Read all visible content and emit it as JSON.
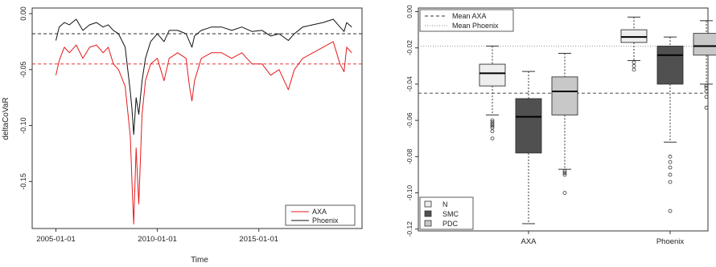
{
  "chart_data": [
    {
      "type": "line",
      "xlabel": "Time",
      "ylabel": "deltaCoVaR",
      "x_range": [
        "2003-11-01",
        "2020-02-01"
      ],
      "ylim": [
        -0.192,
        0.005
      ],
      "x_ticks": [
        "2005-01-01",
        "2010-01-01",
        "2015-01-01"
      ],
      "y_ticks": [
        "0.00",
        "-0.05",
        "-0.10",
        "-0.15"
      ],
      "y_tick_values": [
        0.0,
        -0.05,
        -0.1,
        -0.15
      ],
      "legend": {
        "position": "bottom-right",
        "entries": [
          "AXA",
          "Phoenix"
        ]
      },
      "series": [
        {
          "name": "AXA",
          "color": "#e41a1c",
          "points": [
            [
              "2005-01-01",
              -0.055
            ],
            [
              "2005-03-01",
              -0.042
            ],
            [
              "2005-06-01",
              -0.03
            ],
            [
              "2005-09-01",
              -0.035
            ],
            [
              "2006-01-01",
              -0.028
            ],
            [
              "2006-05-01",
              -0.04
            ],
            [
              "2006-09-01",
              -0.03
            ],
            [
              "2007-01-01",
              -0.028
            ],
            [
              "2007-05-01",
              -0.035
            ],
            [
              "2007-08-01",
              -0.03
            ],
            [
              "2007-11-01",
              -0.045
            ],
            [
              "2008-02-01",
              -0.05
            ],
            [
              "2008-06-01",
              -0.065
            ],
            [
              "2008-09-01",
              -0.11
            ],
            [
              "2008-10-01",
              -0.15
            ],
            [
              "2008-11-01",
              -0.188
            ],
            [
              "2008-12-15",
              -0.12
            ],
            [
              "2009-02-01",
              -0.17
            ],
            [
              "2009-04-01",
              -0.09
            ],
            [
              "2009-06-01",
              -0.06
            ],
            [
              "2009-09-01",
              -0.045
            ],
            [
              "2010-01-01",
              -0.04
            ],
            [
              "2010-05-01",
              -0.06
            ],
            [
              "2010-08-01",
              -0.04
            ],
            [
              "2011-01-01",
              -0.035
            ],
            [
              "2011-06-01",
              -0.04
            ],
            [
              "2011-08-01",
              -0.065
            ],
            [
              "2011-09-15",
              -0.078
            ],
            [
              "2011-11-01",
              -0.06
            ],
            [
              "2012-03-01",
              -0.04
            ],
            [
              "2012-09-01",
              -0.035
            ],
            [
              "2013-03-01",
              -0.035
            ],
            [
              "2013-09-01",
              -0.04
            ],
            [
              "2014-03-01",
              -0.035
            ],
            [
              "2014-09-01",
              -0.045
            ],
            [
              "2015-03-01",
              -0.045
            ],
            [
              "2015-08-01",
              -0.055
            ],
            [
              "2016-01-01",
              -0.05
            ],
            [
              "2016-06-15",
              -0.068
            ],
            [
              "2016-10-01",
              -0.05
            ],
            [
              "2017-03-01",
              -0.04
            ],
            [
              "2017-09-01",
              -0.035
            ],
            [
              "2018-03-01",
              -0.03
            ],
            [
              "2018-09-01",
              -0.025
            ],
            [
              "2019-01-01",
              -0.045
            ],
            [
              "2019-03-15",
              -0.052
            ],
            [
              "2019-05-01",
              -0.03
            ],
            [
              "2019-08-01",
              -0.035
            ]
          ]
        },
        {
          "name": "Phoenix",
          "color": "#111111",
          "points": [
            [
              "2005-01-01",
              -0.024
            ],
            [
              "2005-03-01",
              -0.012
            ],
            [
              "2005-06-01",
              -0.008
            ],
            [
              "2005-09-01",
              -0.01
            ],
            [
              "2006-01-01",
              -0.005
            ],
            [
              "2006-05-01",
              -0.015
            ],
            [
              "2006-09-01",
              -0.01
            ],
            [
              "2007-01-01",
              -0.008
            ],
            [
              "2007-05-01",
              -0.012
            ],
            [
              "2007-08-01",
              -0.01
            ],
            [
              "2007-11-01",
              -0.015
            ],
            [
              "2008-02-01",
              -0.018
            ],
            [
              "2008-06-01",
              -0.03
            ],
            [
              "2008-09-01",
              -0.07
            ],
            [
              "2008-10-01",
              -0.085
            ],
            [
              "2008-11-01",
              -0.108
            ],
            [
              "2008-12-15",
              -0.075
            ],
            [
              "2009-02-01",
              -0.09
            ],
            [
              "2009-04-01",
              -0.06
            ],
            [
              "2009-06-01",
              -0.04
            ],
            [
              "2009-09-01",
              -0.025
            ],
            [
              "2010-01-01",
              -0.018
            ],
            [
              "2010-05-01",
              -0.025
            ],
            [
              "2010-08-01",
              -0.015
            ],
            [
              "2011-01-01",
              -0.015
            ],
            [
              "2011-06-01",
              -0.018
            ],
            [
              "2011-08-01",
              -0.025
            ],
            [
              "2011-09-15",
              -0.03
            ],
            [
              "2011-11-01",
              -0.02
            ],
            [
              "2012-03-01",
              -0.015
            ],
            [
              "2012-09-01",
              -0.012
            ],
            [
              "2013-03-01",
              -0.012
            ],
            [
              "2013-09-01",
              -0.015
            ],
            [
              "2014-03-01",
              -0.012
            ],
            [
              "2014-09-01",
              -0.016
            ],
            [
              "2015-03-01",
              -0.015
            ],
            [
              "2015-08-01",
              -0.02
            ],
            [
              "2016-01-01",
              -0.018
            ],
            [
              "2016-06-15",
              -0.024
            ],
            [
              "2016-10-01",
              -0.018
            ],
            [
              "2017-03-01",
              -0.012
            ],
            [
              "2017-09-01",
              -0.01
            ],
            [
              "2018-03-01",
              -0.008
            ],
            [
              "2018-09-01",
              -0.005
            ],
            [
              "2019-01-01",
              -0.012
            ],
            [
              "2019-03-15",
              -0.016
            ],
            [
              "2019-05-01",
              -0.008
            ],
            [
              "2019-08-01",
              -0.012
            ]
          ]
        }
      ],
      "hlines": [
        {
          "y": -0.018,
          "color": "#111111",
          "style": "dashed"
        },
        {
          "y": -0.045,
          "color": "#e41a1c",
          "style": "dashed"
        }
      ]
    },
    {
      "type": "box",
      "ylim": [
        -0.121,
        0.002
      ],
      "y_ticks": [
        "0.00",
        "-0.02",
        "-0.04",
        "-0.06",
        "-0.08",
        "-0.10",
        "-0.12"
      ],
      "y_tick_values": [
        0.0,
        -0.02,
        -0.04,
        -0.06,
        -0.08,
        -0.1,
        -0.12
      ],
      "categories": [
        "AXA",
        "Phoenix"
      ],
      "mean_lines": [
        {
          "name": "Mean AXA",
          "y": -0.045,
          "style": "dashed",
          "color": "#333333"
        },
        {
          "name": "Mean Phoenix",
          "y": -0.019,
          "style": "dotted",
          "color": "#888888"
        }
      ],
      "mean_legend_position": "top-left",
      "group_legend": {
        "position": "bottom-left",
        "entries": [
          "N",
          "SMC",
          "PDC"
        ]
      },
      "group_colors": {
        "N": "#eeeeee",
        "SMC": "#505050",
        "PDC": "#c8c8c8"
      },
      "boxes": [
        {
          "category": "AXA",
          "group": "N",
          "whisker_low": -0.057,
          "q1": -0.041,
          "median": -0.034,
          "q3": -0.029,
          "whisker_high": -0.019,
          "outliers": [
            -0.06,
            -0.061,
            -0.062,
            -0.063,
            -0.064,
            -0.066,
            -0.07
          ]
        },
        {
          "category": "AXA",
          "group": "SMC",
          "whisker_low": -0.117,
          "q1": -0.078,
          "median": -0.058,
          "q3": -0.048,
          "whisker_high": -0.033,
          "outliers": []
        },
        {
          "category": "AXA",
          "group": "PDC",
          "whisker_low": -0.087,
          "q1": -0.057,
          "median": -0.044,
          "q3": -0.036,
          "whisker_high": -0.023,
          "outliers": [
            -0.088,
            -0.089,
            -0.09,
            -0.1
          ]
        },
        {
          "category": "Phoenix",
          "group": "N",
          "whisker_low": -0.027,
          "q1": -0.017,
          "median": -0.014,
          "q3": -0.01,
          "whisker_high": -0.003,
          "outliers": [
            -0.028,
            -0.03,
            -0.032
          ]
        },
        {
          "category": "Phoenix",
          "group": "SMC",
          "whisker_low": -0.072,
          "q1": -0.04,
          "median": -0.024,
          "q3": -0.019,
          "whisker_high": -0.014,
          "outliers": [
            -0.08,
            -0.083,
            -0.086,
            -0.09,
            -0.094,
            -0.11
          ]
        },
        {
          "category": "Phoenix",
          "group": "PDC",
          "whisker_low": -0.04,
          "q1": -0.024,
          "median": -0.019,
          "q3": -0.012,
          "whisker_high": -0.005,
          "outliers": [
            -0.041,
            -0.042,
            -0.044,
            -0.047,
            -0.053
          ]
        }
      ]
    }
  ]
}
